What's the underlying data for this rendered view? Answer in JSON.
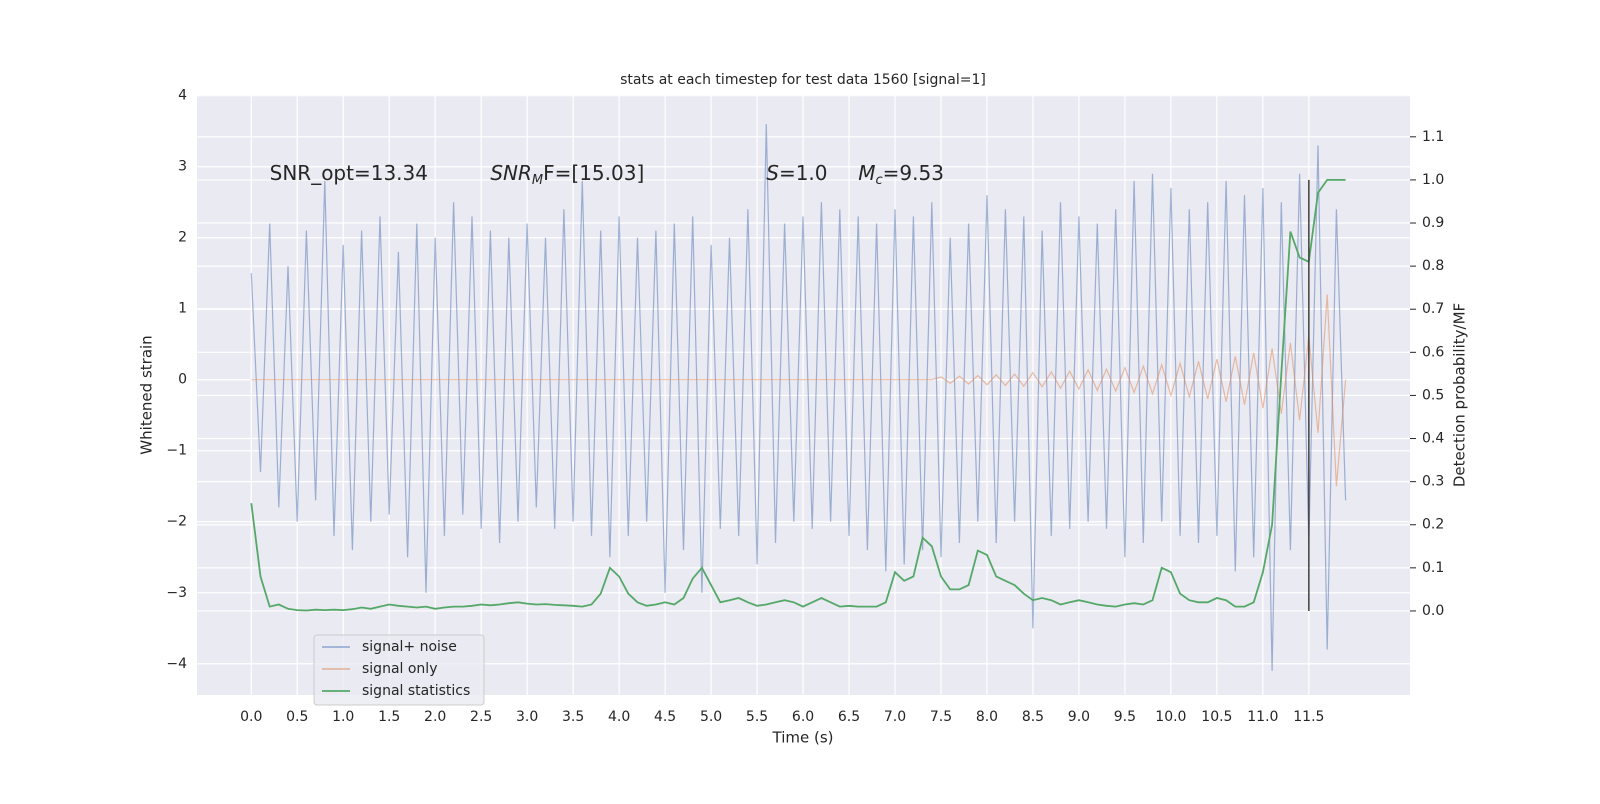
{
  "chart_data": {
    "type": "line",
    "title": "stats at each timestep for test data 1560 [signal=1]",
    "xlabel": "Time (s)",
    "ylabel": "Whitened strain",
    "y2label": "Detection probability/MF",
    "xlim": [
      -0.59,
      12.6
    ],
    "ylim": [
      -4.44,
      4.01
    ],
    "y2lim": [
      -0.195,
      1.197
    ],
    "xticks": [
      {
        "value": 0,
        "label": "0.0"
      },
      0.5,
      {
        "value": 1,
        "label": "1.0"
      },
      1.5,
      {
        "value": 2,
        "label": "2.0"
      },
      2.5,
      {
        "value": 3,
        "label": "3.0"
      },
      3.5,
      {
        "value": 4,
        "label": "4.0"
      },
      4.5,
      {
        "value": 5,
        "label": "5.0"
      },
      5.5,
      {
        "value": 6,
        "label": "6.0"
      },
      6.5,
      {
        "value": 7,
        "label": "7.0"
      },
      7.5,
      {
        "value": 8,
        "label": "8.0"
      },
      8.5,
      {
        "value": 9,
        "label": "9.0"
      },
      9.5,
      {
        "value": 10,
        "label": "10.0"
      },
      10.5,
      {
        "value": 11,
        "label": "11.0"
      },
      11.5
    ],
    "yticks": [
      {
        "value": -4,
        "label": "−4"
      },
      {
        "value": -3,
        "label": "−3"
      },
      {
        "value": -2,
        "label": "−2"
      },
      {
        "value": -1,
        "label": "−1"
      },
      0,
      1,
      2,
      3,
      4
    ],
    "y2ticks": [
      {
        "value": 0,
        "label": "0.0"
      },
      0.1,
      0.2,
      0.3,
      0.4,
      0.5,
      0.6,
      0.7,
      0.8,
      0.9,
      {
        "value": 1,
        "label": "1.0"
      },
      1.1
    ],
    "grid": true,
    "legend": "lower left",
    "x": [
      0,
      0.1,
      0.2,
      0.3,
      0.4,
      0.5,
      0.6,
      0.7,
      0.8,
      0.9,
      1,
      1.1,
      1.2,
      1.3,
      1.4,
      1.5,
      1.6,
      1.7,
      1.8,
      1.9,
      2,
      2.1,
      2.2,
      2.3,
      2.4,
      2.5,
      2.6,
      2.7,
      2.8,
      2.9,
      3,
      3.1,
      3.2,
      3.3,
      3.4,
      3.5,
      3.6,
      3.7,
      3.8,
      3.9,
      4,
      4.1,
      4.2,
      4.3,
      4.4,
      4.5,
      4.6,
      4.7,
      4.8,
      4.9,
      5,
      5.1,
      5.2,
      5.3,
      5.4,
      5.5,
      5.6,
      5.7,
      5.8,
      5.9,
      6,
      6.1,
      6.2,
      6.3,
      6.4,
      6.5,
      6.6,
      6.7,
      6.8,
      6.9,
      7,
      7.1,
      7.2,
      7.3,
      7.4,
      7.5,
      7.6,
      7.7,
      7.8,
      7.9,
      8,
      8.1,
      8.2,
      8.3,
      8.4,
      8.5,
      8.6,
      8.7,
      8.8,
      8.9,
      9,
      9.1,
      9.2,
      9.3,
      9.4,
      9.5,
      9.6,
      9.7,
      9.8,
      9.9,
      10,
      10.1,
      10.2,
      10.3,
      10.4,
      10.5,
      10.6,
      10.7,
      10.8,
      10.9,
      11,
      11.1,
      11.2,
      11.3,
      11.4,
      11.5,
      11.6,
      11.7,
      11.8,
      11.9
    ],
    "series": [
      {
        "name": "signal+ noise",
        "color": "#4c72b0",
        "alpha": 0.5,
        "values": [
          1.5,
          -1.3,
          2.2,
          -1.8,
          1.6,
          -2.0,
          2.1,
          -1.7,
          2.8,
          -2.2,
          1.9,
          -2.4,
          2.1,
          -2.0,
          2.3,
          -1.9,
          1.8,
          -2.5,
          2.2,
          -3.0,
          2.0,
          -2.2,
          2.5,
          -1.9,
          2.3,
          -2.1,
          2.1,
          -2.3,
          2.0,
          -2.0,
          2.2,
          -1.8,
          2.0,
          -2.1,
          2.4,
          -2.0,
          2.8,
          -2.2,
          2.1,
          -2.5,
          2.3,
          -2.2,
          2.0,
          -2.0,
          2.1,
          -3.0,
          2.2,
          -2.4,
          2.3,
          -3.0,
          1.9,
          -2.1,
          2.0,
          -2.2,
          2.4,
          -2.6,
          3.6,
          -2.3,
          2.2,
          -2.0,
          2.3,
          -2.1,
          2.5,
          -2.0,
          2.4,
          -2.2,
          2.3,
          -2.4,
          2.2,
          -2.7,
          2.4,
          -2.6,
          2.3,
          -2.4,
          2.5,
          -2.5,
          2.0,
          -2.3,
          2.2,
          -2.0,
          2.6,
          -2.3,
          2.4,
          -2.0,
          2.3,
          -3.5,
          2.1,
          -2.2,
          2.5,
          -2.1,
          2.3,
          -2.0,
          2.2,
          -2.1,
          2.4,
          -2.5,
          2.8,
          -2.3,
          2.9,
          -2.0,
          2.7,
          -2.2,
          2.4,
          -2.3,
          2.5,
          -2.2,
          2.8,
          -2.7,
          2.6,
          -2.5,
          2.7,
          -4.1,
          2.5,
          -2.4,
          2.9,
          -2.3,
          3.3,
          -3.8,
          2.4,
          -1.7
        ]
      },
      {
        "name": "signal only",
        "color": "#dd8452",
        "alpha": 0.5,
        "values": [
          0,
          0,
          0,
          0,
          0,
          0,
          0,
          0,
          0,
          0,
          0,
          0,
          0,
          0,
          0,
          0,
          0,
          0,
          0,
          0,
          0,
          0,
          0,
          0,
          0,
          0,
          0,
          0,
          0,
          0,
          0,
          0,
          0,
          0,
          0,
          0,
          0,
          0,
          0,
          0,
          0,
          0,
          0,
          0,
          0,
          0,
          0,
          0,
          0,
          0,
          0,
          0,
          0,
          0,
          0,
          0,
          0,
          0,
          0,
          0,
          0,
          0,
          0,
          0,
          0,
          0,
          0,
          0,
          0,
          0,
          0,
          0,
          0,
          0,
          0,
          0.04,
          -0.05,
          0.05,
          -0.06,
          0.06,
          -0.07,
          0.07,
          -0.08,
          0.08,
          -0.09,
          0.1,
          -0.1,
          0.11,
          -0.12,
          0.12,
          -0.13,
          0.14,
          -0.15,
          0.15,
          -0.16,
          0.17,
          -0.18,
          0.19,
          -0.2,
          0.21,
          -0.22,
          0.23,
          -0.24,
          0.26,
          -0.27,
          0.29,
          -0.31,
          0.33,
          -0.35,
          0.38,
          -0.4,
          0.44,
          -0.48,
          0.52,
          -0.57,
          0.62,
          -0.75,
          1.2,
          -1.5,
          0
        ]
      },
      {
        "name": "signal statistics",
        "color": "#55a868",
        "alpha": 1,
        "axis": "y2",
        "values": [
          0.25,
          0.08,
          0.01,
          0.015,
          0.005,
          0.002,
          0.001,
          0.003,
          0.002,
          0.003,
          0.002,
          0.004,
          0.008,
          0.005,
          0.01,
          0.015,
          0.012,
          0.01,
          0.008,
          0.01,
          0.005,
          0.008,
          0.01,
          0.01,
          0.012,
          0.015,
          0.013,
          0.015,
          0.018,
          0.02,
          0.017,
          0.015,
          0.016,
          0.014,
          0.013,
          0.012,
          0.01,
          0.015,
          0.04,
          0.1,
          0.08,
          0.04,
          0.02,
          0.012,
          0.015,
          0.02,
          0.015,
          0.03,
          0.075,
          0.1,
          0.06,
          0.02,
          0.025,
          0.03,
          0.02,
          0.012,
          0.015,
          0.02,
          0.025,
          0.02,
          0.01,
          0.02,
          0.03,
          0.02,
          0.01,
          0.012,
          0.01,
          0.01,
          0.01,
          0.02,
          0.09,
          0.07,
          0.08,
          0.17,
          0.15,
          0.08,
          0.05,
          0.05,
          0.06,
          0.14,
          0.13,
          0.08,
          0.07,
          0.06,
          0.04,
          0.025,
          0.03,
          0.025,
          0.015,
          0.02,
          0.025,
          0.02,
          0.015,
          0.012,
          0.01,
          0.015,
          0.018,
          0.015,
          0.025,
          0.1,
          0.09,
          0.04,
          0.025,
          0.02,
          0.02,
          0.03,
          0.025,
          0.01,
          0.01,
          0.02,
          0.09,
          0.2,
          0.55,
          0.88,
          0.82,
          0.81,
          0.97,
          1.0,
          1.0,
          1.0
        ]
      }
    ],
    "vlines": [
      {
        "x": 11.5,
        "ymin": 0,
        "ymax": 1,
        "color": "#404040",
        "axis": "y2"
      }
    ],
    "annotations": [
      {
        "x": 0.2,
        "y": 2.9,
        "parts": [
          {
            "text": "SNR_opt=13.34"
          }
        ]
      },
      {
        "x": 2.6,
        "y": 2.9,
        "parts": [
          {
            "text": "SNR",
            "italic": true
          },
          {
            "text": "M",
            "italic": true,
            "sub": true
          },
          {
            "text": "F=[15.03]"
          }
        ]
      },
      {
        "x": 5.6,
        "y": 2.9,
        "parts": [
          {
            "text": "S",
            "italic": true
          },
          {
            "text": "=1.0"
          }
        ]
      },
      {
        "x": 6.6,
        "y": 2.9,
        "parts": [
          {
            "text": "M",
            "italic": true
          },
          {
            "text": "c",
            "italic": true,
            "sub": true
          },
          {
            "text": "=9.53"
          }
        ]
      }
    ]
  }
}
